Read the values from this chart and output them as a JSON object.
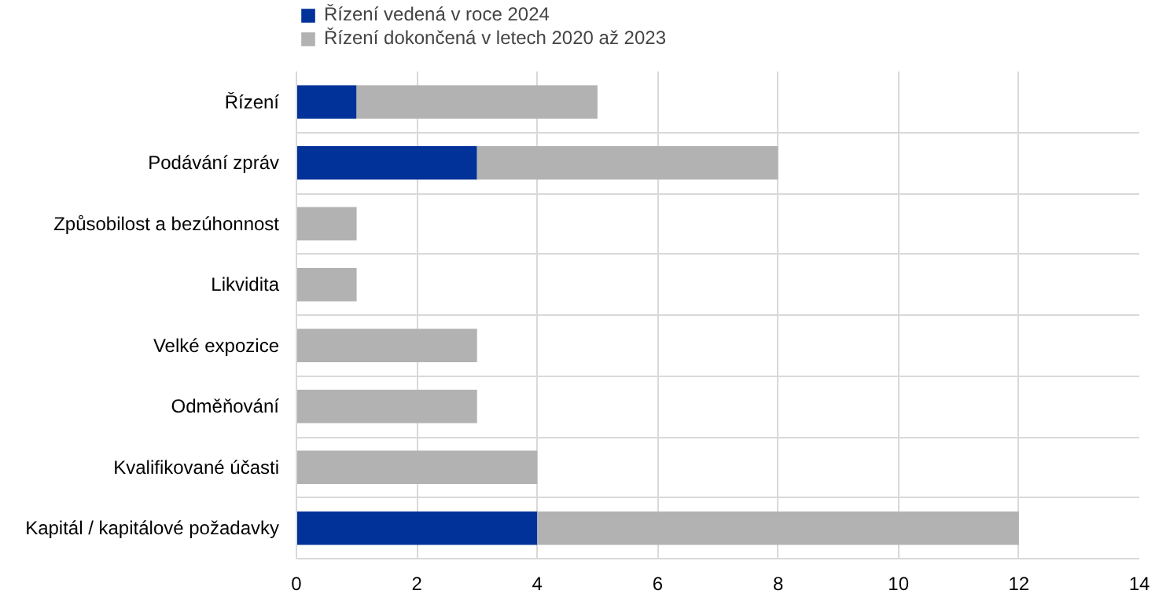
{
  "chart_data": {
    "type": "bar",
    "orientation": "horizontal",
    "stacked": true,
    "categories": [
      "Řízení",
      "Podávání zpráv",
      "Způsobilost a bezúhonnost",
      "Likvidita",
      "Velké expozice",
      "Odměňování",
      "Kvalifikované účasti",
      "Kapitál / kapitálové požadavky"
    ],
    "series": [
      {
        "name": "Řízení vedená v roce 2024",
        "color": "#003299",
        "values": [
          1,
          3,
          0,
          0,
          0,
          0,
          0,
          4
        ]
      },
      {
        "name": "Řízení dokončená v letech 2020 až 2023",
        "color": "#b2b2b2",
        "values": [
          4,
          5,
          1,
          1,
          3,
          3,
          4,
          8
        ]
      }
    ],
    "xlim": [
      0,
      14
    ],
    "xticks": [
      0,
      2,
      4,
      6,
      8,
      10,
      12,
      14
    ],
    "grid": true,
    "legend": "top left"
  }
}
